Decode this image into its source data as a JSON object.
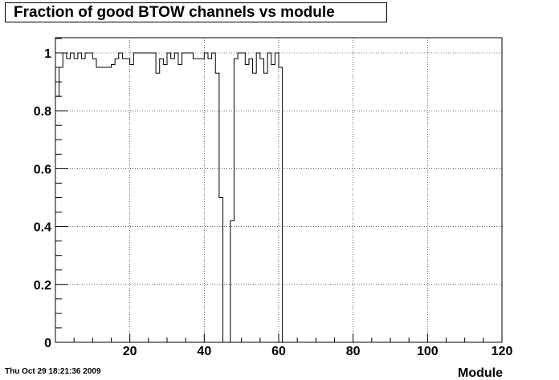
{
  "chart_data": {
    "type": "histogram",
    "title": "Fraction of good BTOW channels vs module",
    "xlabel": "Module",
    "ylabel": "",
    "xlim": [
      0,
      120
    ],
    "ylim": [
      0,
      1.05
    ],
    "x_ticks": [
      "20",
      "40",
      "60",
      "80",
      "100",
      "120"
    ],
    "y_ticks": [
      "0",
      "0.2",
      "0.4",
      "0.6",
      "0.8",
      "1"
    ],
    "grid": true,
    "bin_width": 1,
    "series": [
      {
        "x_start": 0,
        "values": [
          0.85,
          0.95,
          1,
          0.98,
          1,
          0.98,
          1,
          0.98,
          1,
          1,
          0.98,
          0.95,
          0.95,
          0.95,
          0.95,
          0.96,
          0.98,
          1,
          0.98,
          0.98,
          0.96,
          1,
          1,
          1,
          1,
          1,
          1,
          0.93,
          0.98,
          0.96,
          1,
          0.98,
          1,
          0.96,
          1,
          1,
          1,
          0.98,
          0.98,
          0.98,
          1,
          0.98,
          1,
          0.93,
          0.5,
          0,
          0,
          0.42,
          0.98,
          1,
          1,
          0.96,
          0.98,
          0.93,
          1,
          0.98,
          0.93,
          1,
          0.96,
          1,
          0.95,
          0
        ]
      }
    ]
  },
  "footer": {
    "timestamp": "Thu Oct 29 18:21:36 2009"
  }
}
